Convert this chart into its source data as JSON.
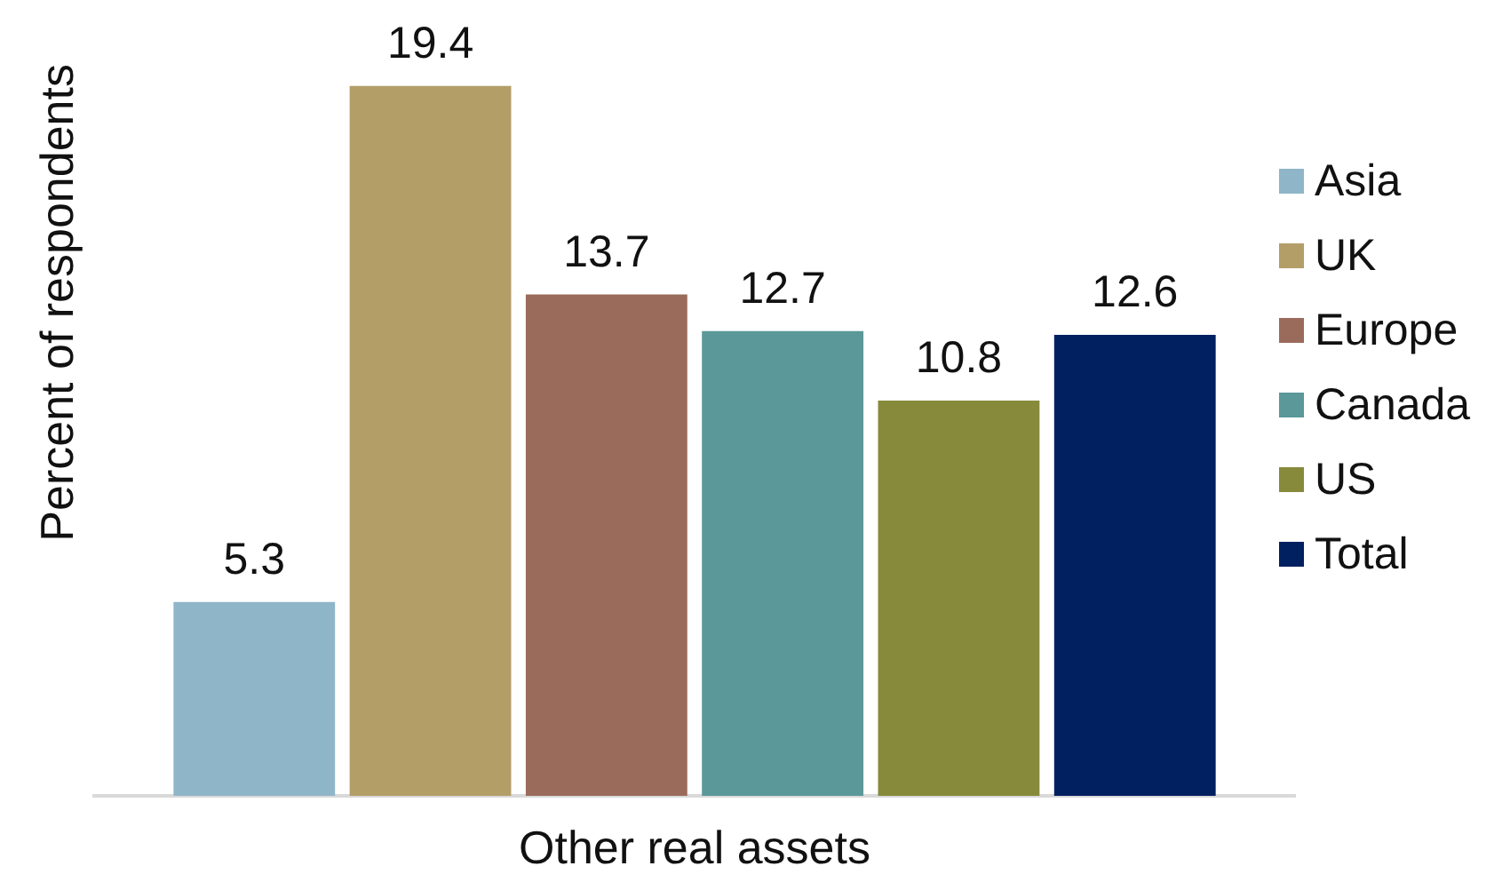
{
  "chart_data": {
    "type": "bar",
    "xlabel": "Other real assets",
    "ylabel": "Percent of respondents",
    "categories": [
      null
    ],
    "series": [
      {
        "name": "Asia",
        "color": "#8fb5c8",
        "values": [
          5.3
        ]
      },
      {
        "name": "UK",
        "color": "#b39e68",
        "values": [
          19.4
        ]
      },
      {
        "name": "Europe",
        "color": "#9a6b5a",
        "values": [
          13.7
        ]
      },
      {
        "name": "Canada",
        "color": "#5a9899",
        "values": [
          12.7
        ]
      },
      {
        "name": "US",
        "color": "#878a3b",
        "values": [
          10.8
        ]
      },
      {
        "name": "Total",
        "color": "#002060",
        "values": [
          12.6
        ]
      }
    ],
    "data_labels": true,
    "legend": "right"
  }
}
